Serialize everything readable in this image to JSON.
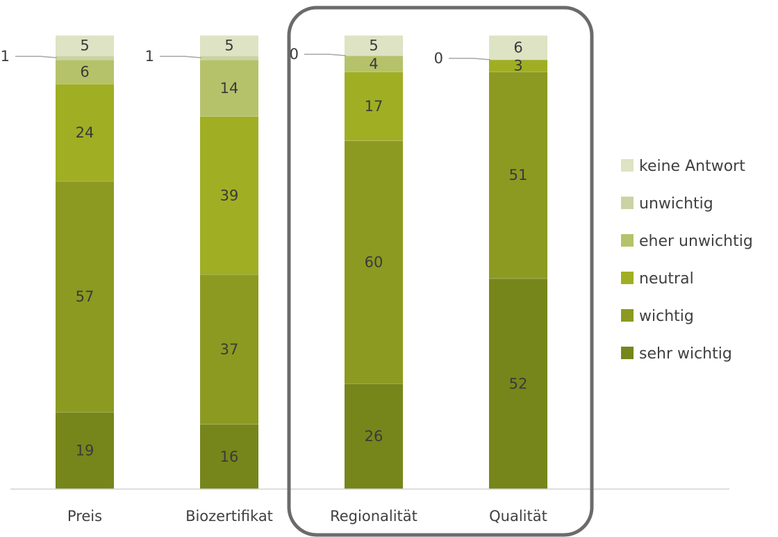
{
  "chart_data": {
    "type": "bar",
    "stacked": true,
    "categories": [
      "Preis",
      "Biozertifikat",
      "Regionalität",
      "Qualität"
    ],
    "ylim": [
      0,
      112
    ],
    "series": [
      {
        "name": "sehr wichtig",
        "color": "#76861b",
        "values": [
          19,
          16,
          26,
          52
        ]
      },
      {
        "name": "wichtig",
        "color": "#8c9a21",
        "values": [
          57,
          37,
          60,
          51
        ]
      },
      {
        "name": "neutral",
        "color": "#a0ae24",
        "values": [
          24,
          39,
          17,
          3
        ]
      },
      {
        "name": "eher unwichtig",
        "color": "#b6c26a",
        "values": [
          6,
          14,
          4,
          0
        ]
      },
      {
        "name": "unwichtig",
        "color": "#cbd3a4",
        "values": [
          1,
          1,
          0,
          0
        ]
      },
      {
        "name": "keine Antwort",
        "color": "#dde3c3",
        "values": [
          5,
          5,
          5,
          6
        ]
      }
    ],
    "callouts": [
      {
        "category": "Preis",
        "series": "unwichtig",
        "label": "1"
      },
      {
        "category": "Biozertifikat",
        "series": "unwichtig",
        "label": "1"
      },
      {
        "category": "Regionalität",
        "series": "unwichtig",
        "label": "0"
      },
      {
        "category": "Qualität",
        "series": "eher unwichtig",
        "label": "0"
      }
    ],
    "highlight": [
      "Regionalität",
      "Qualität"
    ],
    "legend_position": "right",
    "grid": false,
    "title": "",
    "xlabel": "",
    "ylabel": ""
  }
}
